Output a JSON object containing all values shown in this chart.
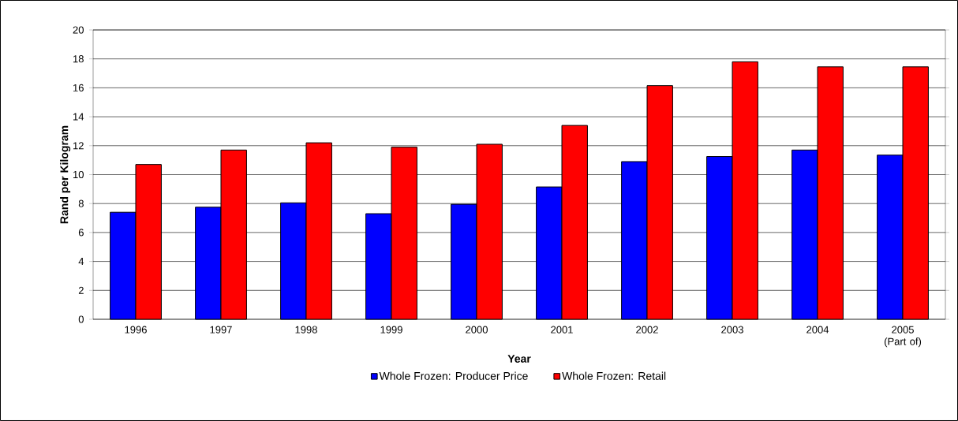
{
  "chart_data": {
    "type": "bar",
    "xlabel": "Year",
    "ylabel": "Rand per Kilogram",
    "categories": [
      "1996",
      "1997",
      "1998",
      "1999",
      "2000",
      "2001",
      "2002",
      "2003",
      "2004",
      "2005 (Part of)"
    ],
    "series": [
      {
        "name": "Whole Frozen: Producer Price",
        "color": "#0000ff",
        "values": [
          7.4,
          7.75,
          8.05,
          7.3,
          7.95,
          9.15,
          10.9,
          11.25,
          11.7,
          11.35
        ]
      },
      {
        "name": "Whole Frozen: Retail",
        "color": "#ff0000",
        "values": [
          10.7,
          11.7,
          12.2,
          11.9,
          12.1,
          13.4,
          16.15,
          17.8,
          17.45,
          17.45
        ]
      }
    ],
    "ylim": [
      0,
      20
    ],
    "yticks": [
      0,
      2,
      4,
      6,
      8,
      10,
      12,
      14,
      16,
      18,
      20
    ],
    "grid": "y",
    "legend": "bottom"
  }
}
